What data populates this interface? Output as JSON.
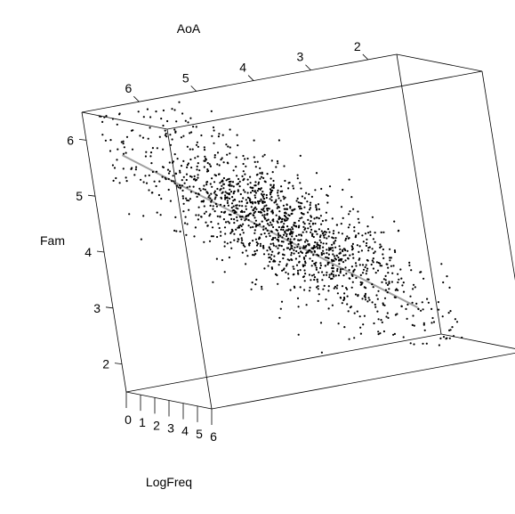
{
  "chart_data": {
    "type": "scatter",
    "plot_style": "3d-scatter",
    "axes": {
      "x": {
        "label": "LogFreq",
        "ticks": [
          "0",
          "1",
          "2",
          "3",
          "4",
          "5",
          "6"
        ]
      },
      "y": {
        "label": "AoA",
        "ticks": [
          "2",
          "3",
          "4",
          "5",
          "6"
        ]
      },
      "z": {
        "label": "Fam",
        "ticks": [
          "2",
          "3",
          "4",
          "5",
          "6"
        ]
      }
    },
    "xlim": [
      0,
      6
    ],
    "ylim": [
      1.5,
      7
    ],
    "zlim": [
      1.5,
      6.5
    ],
    "n_points": 1500,
    "regression_plane": true,
    "point_color": "#000000",
    "plane_color": "#a0a0a0"
  }
}
